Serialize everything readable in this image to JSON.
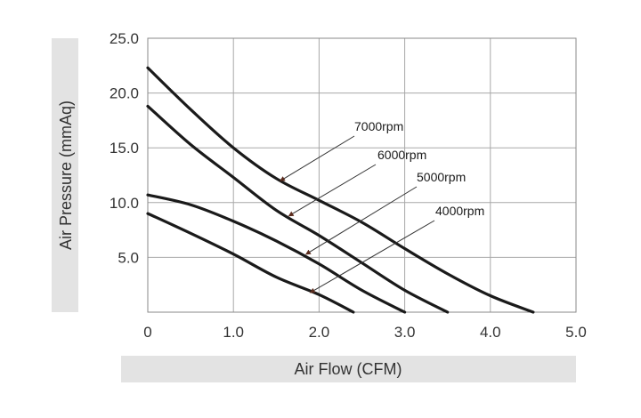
{
  "chart_data": {
    "type": "line",
    "title": "",
    "xlabel": "Air Flow (CFM)",
    "ylabel": "Air Pressure (mmAq)",
    "xlim": [
      0,
      5
    ],
    "ylim": [
      0,
      25
    ],
    "x_ticks": [
      "0",
      "1.0",
      "2.0",
      "3.0",
      "4.0",
      "5.0"
    ],
    "y_ticks": [
      "5.0",
      "10.0",
      "15.0",
      "20.0",
      "25.0"
    ],
    "grid": true,
    "legend": "leader-line annotations",
    "colors": {
      "line": "#1a1a1a",
      "grid": "#a8a8a8",
      "label_band": "#e3e3e3",
      "arrow": "#5a2b1d"
    },
    "series": [
      {
        "name": "7000rpm",
        "x": [
          0,
          0.5,
          1.0,
          1.5,
          2.0,
          2.5,
          3.0,
          3.5,
          4.0,
          4.5
        ],
        "y": [
          22.3,
          18.5,
          15.0,
          12.2,
          10.2,
          8.2,
          5.8,
          3.5,
          1.5,
          0
        ],
        "annotation": {
          "x": 1.55,
          "y": 12.0
        }
      },
      {
        "name": "6000rpm",
        "x": [
          0,
          0.5,
          1.0,
          1.5,
          2.0,
          2.5,
          3.0,
          3.5
        ],
        "y": [
          18.8,
          15.3,
          12.3,
          9.3,
          7.0,
          4.5,
          2.0,
          0
        ],
        "annotation": {
          "x": 1.65,
          "y": 8.8
        }
      },
      {
        "name": "5000rpm",
        "x": [
          0,
          0.5,
          1.0,
          1.5,
          2.0,
          2.5,
          3.0
        ],
        "y": [
          10.7,
          9.8,
          8.3,
          6.5,
          4.4,
          2.0,
          0
        ],
        "annotation": {
          "x": 1.85,
          "y": 5.3
        }
      },
      {
        "name": "4000rpm",
        "x": [
          0,
          0.5,
          1.0,
          1.5,
          2.0,
          2.4
        ],
        "y": [
          9.0,
          7.2,
          5.3,
          3.2,
          1.6,
          0
        ],
        "annotation": {
          "x": 1.9,
          "y": 1.8
        }
      }
    ]
  }
}
